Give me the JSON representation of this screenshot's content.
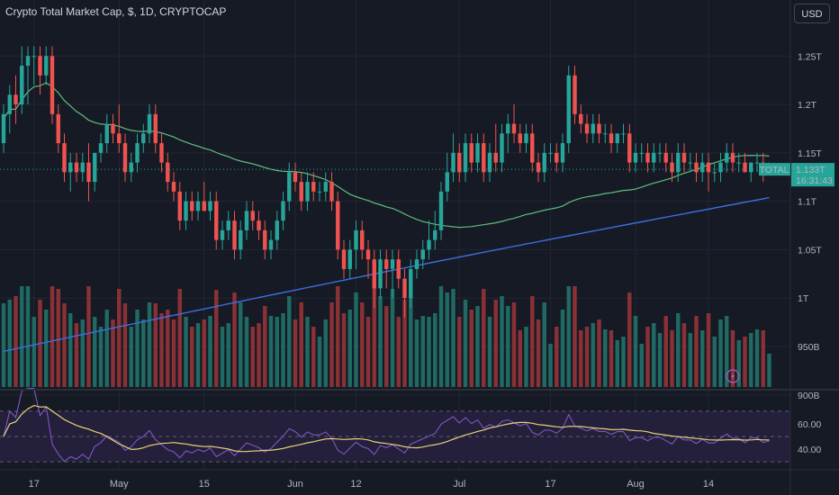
{
  "header": {
    "title": "Crypto Total Market Cap, $, 1D, CRYPTOCAP",
    "currency": "USD"
  },
  "badge": {
    "symbol": "TOTAL",
    "value": "1.133T",
    "countdown": "16:31:43"
  },
  "colors": {
    "up": "#26a69a",
    "down": "#ef5350",
    "vol_up": "#1f6b63",
    "vol_down": "#8a3136",
    "ma_fast": "#5fbf7f",
    "ma_slow": "#3d6fe0",
    "rsi_line": "#7e57c2",
    "rsi_ma": "#e6d27a",
    "rsi_band": "#241f3a"
  },
  "chart_data": [
    {
      "type": "candlestick",
      "title": "Crypto Total Market Cap, $, 1D, CRYPTOCAP",
      "ylim": [
        0.91,
        1.28
      ],
      "yticks": [
        {
          "v": 1.25,
          "label": "1.25T"
        },
        {
          "v": 1.2,
          "label": "1.2T"
        },
        {
          "v": 1.15,
          "label": "1.15T"
        },
        {
          "v": 1.1,
          "label": "1.1T"
        },
        {
          "v": 1.05,
          "label": "1.05T"
        },
        {
          "v": 1.0,
          "label": "1T"
        },
        {
          "v": 0.95,
          "label": "950B"
        },
        {
          "v": 0.9,
          "label": "900B"
        }
      ],
      "xticks": [
        {
          "i": 5,
          "label": "17"
        },
        {
          "i": 19,
          "label": "May"
        },
        {
          "i": 33,
          "label": "15"
        },
        {
          "i": 48,
          "label": "Jun"
        },
        {
          "i": 58,
          "label": "12"
        },
        {
          "i": 75,
          "label": "Jul"
        },
        {
          "i": 90,
          "label": "17"
        },
        {
          "i": 104,
          "label": "Aug"
        },
        {
          "i": 116,
          "label": "14"
        }
      ],
      "ohlc": [
        [
          1.16,
          1.2,
          1.15,
          1.19
        ],
        [
          1.19,
          1.22,
          1.17,
          1.21
        ],
        [
          1.21,
          1.23,
          1.18,
          1.2
        ],
        [
          1.2,
          1.26,
          1.19,
          1.24
        ],
        [
          1.24,
          1.26,
          1.2,
          1.25
        ],
        [
          1.25,
          1.26,
          1.22,
          1.25
        ],
        [
          1.25,
          1.26,
          1.21,
          1.23
        ],
        [
          1.23,
          1.26,
          1.22,
          1.25
        ],
        [
          1.25,
          1.26,
          1.18,
          1.19
        ],
        [
          1.19,
          1.2,
          1.15,
          1.16
        ],
        [
          1.16,
          1.17,
          1.12,
          1.13
        ],
        [
          1.13,
          1.15,
          1.11,
          1.14
        ],
        [
          1.14,
          1.15,
          1.12,
          1.13
        ],
        [
          1.13,
          1.15,
          1.12,
          1.14
        ],
        [
          1.14,
          1.16,
          1.1,
          1.12
        ],
        [
          1.12,
          1.15,
          1.11,
          1.15
        ],
        [
          1.15,
          1.17,
          1.14,
          1.16
        ],
        [
          1.16,
          1.19,
          1.15,
          1.18
        ],
        [
          1.18,
          1.19,
          1.16,
          1.17
        ],
        [
          1.17,
          1.2,
          1.15,
          1.16
        ],
        [
          1.16,
          1.17,
          1.12,
          1.13
        ],
        [
          1.13,
          1.15,
          1.12,
          1.14
        ],
        [
          1.14,
          1.17,
          1.13,
          1.16
        ],
        [
          1.16,
          1.18,
          1.15,
          1.17
        ],
        [
          1.17,
          1.2,
          1.16,
          1.19
        ],
        [
          1.19,
          1.2,
          1.15,
          1.16
        ],
        [
          1.16,
          1.17,
          1.13,
          1.14
        ],
        [
          1.14,
          1.15,
          1.11,
          1.12
        ],
        [
          1.12,
          1.13,
          1.1,
          1.11
        ],
        [
          1.11,
          1.12,
          1.07,
          1.08
        ],
        [
          1.08,
          1.11,
          1.07,
          1.1
        ],
        [
          1.1,
          1.11,
          1.08,
          1.09
        ],
        [
          1.09,
          1.11,
          1.08,
          1.1
        ],
        [
          1.1,
          1.12,
          1.09,
          1.09
        ],
        [
          1.09,
          1.11,
          1.08,
          1.1
        ],
        [
          1.1,
          1.11,
          1.05,
          1.06
        ],
        [
          1.06,
          1.08,
          1.05,
          1.07
        ],
        [
          1.07,
          1.09,
          1.06,
          1.08
        ],
        [
          1.08,
          1.09,
          1.04,
          1.05
        ],
        [
          1.05,
          1.08,
          1.04,
          1.07
        ],
        [
          1.07,
          1.1,
          1.06,
          1.09
        ],
        [
          1.09,
          1.1,
          1.07,
          1.08
        ],
        [
          1.08,
          1.09,
          1.06,
          1.07
        ],
        [
          1.07,
          1.08,
          1.04,
          1.05
        ],
        [
          1.05,
          1.07,
          1.04,
          1.06
        ],
        [
          1.06,
          1.09,
          1.05,
          1.08
        ],
        [
          1.08,
          1.11,
          1.07,
          1.1
        ],
        [
          1.1,
          1.14,
          1.09,
          1.13
        ],
        [
          1.13,
          1.14,
          1.11,
          1.12
        ],
        [
          1.12,
          1.13,
          1.09,
          1.1
        ],
        [
          1.1,
          1.13,
          1.09,
          1.12
        ],
        [
          1.12,
          1.13,
          1.1,
          1.11
        ],
        [
          1.11,
          1.12,
          1.1,
          1.11
        ],
        [
          1.11,
          1.13,
          1.1,
          1.12
        ],
        [
          1.12,
          1.13,
          1.09,
          1.1
        ],
        [
          1.1,
          1.11,
          1.04,
          1.05
        ],
        [
          1.05,
          1.06,
          1.02,
          1.03
        ],
        [
          1.03,
          1.06,
          1.02,
          1.05
        ],
        [
          1.05,
          1.08,
          1.03,
          1.07
        ],
        [
          1.07,
          1.08,
          1.04,
          1.05
        ],
        [
          1.05,
          1.06,
          1.02,
          1.04
        ],
        [
          1.04,
          1.05,
          0.99,
          1.01
        ],
        [
          1.01,
          1.05,
          1.0,
          1.04
        ],
        [
          1.04,
          1.05,
          1.01,
          1.03
        ],
        [
          1.03,
          1.05,
          1.0,
          1.04
        ],
        [
          1.04,
          1.05,
          1.01,
          1.02
        ],
        [
          1.02,
          1.03,
          0.98,
          1.0
        ],
        [
          1.0,
          1.04,
          0.99,
          1.03
        ],
        [
          1.03,
          1.05,
          1.02,
          1.04
        ],
        [
          1.04,
          1.06,
          1.03,
          1.05
        ],
        [
          1.05,
          1.08,
          1.04,
          1.06
        ],
        [
          1.06,
          1.09,
          1.05,
          1.07
        ],
        [
          1.07,
          1.12,
          1.06,
          1.11
        ],
        [
          1.11,
          1.15,
          1.1,
          1.13
        ],
        [
          1.13,
          1.17,
          1.12,
          1.15
        ],
        [
          1.15,
          1.16,
          1.12,
          1.13
        ],
        [
          1.13,
          1.17,
          1.12,
          1.16
        ],
        [
          1.16,
          1.17,
          1.13,
          1.14
        ],
        [
          1.14,
          1.17,
          1.13,
          1.16
        ],
        [
          1.16,
          1.17,
          1.12,
          1.13
        ],
        [
          1.13,
          1.16,
          1.12,
          1.15
        ],
        [
          1.15,
          1.18,
          1.13,
          1.14
        ],
        [
          1.14,
          1.18,
          1.13,
          1.17
        ],
        [
          1.17,
          1.19,
          1.15,
          1.18
        ],
        [
          1.18,
          1.2,
          1.16,
          1.17
        ],
        [
          1.17,
          1.18,
          1.15,
          1.16
        ],
        [
          1.16,
          1.18,
          1.15,
          1.17
        ],
        [
          1.17,
          1.18,
          1.13,
          1.14
        ],
        [
          1.14,
          1.15,
          1.12,
          1.13
        ],
        [
          1.13,
          1.16,
          1.12,
          1.15
        ],
        [
          1.15,
          1.16,
          1.14,
          1.15
        ],
        [
          1.15,
          1.16,
          1.13,
          1.14
        ],
        [
          1.14,
          1.17,
          1.13,
          1.16
        ],
        [
          1.16,
          1.24,
          1.15,
          1.23
        ],
        [
          1.23,
          1.24,
          1.18,
          1.19
        ],
        [
          1.19,
          1.2,
          1.17,
          1.18
        ],
        [
          1.18,
          1.19,
          1.16,
          1.17
        ],
        [
          1.17,
          1.19,
          1.16,
          1.18
        ],
        [
          1.18,
          1.19,
          1.16,
          1.17
        ],
        [
          1.17,
          1.18,
          1.16,
          1.17
        ],
        [
          1.17,
          1.18,
          1.15,
          1.16
        ],
        [
          1.16,
          1.17,
          1.15,
          1.17
        ],
        [
          1.17,
          1.18,
          1.16,
          1.17
        ],
        [
          1.17,
          1.18,
          1.13,
          1.14
        ],
        [
          1.14,
          1.16,
          1.13,
          1.15
        ],
        [
          1.15,
          1.16,
          1.14,
          1.15
        ],
        [
          1.15,
          1.16,
          1.13,
          1.14
        ],
        [
          1.14,
          1.16,
          1.13,
          1.15
        ],
        [
          1.15,
          1.16,
          1.14,
          1.15
        ],
        [
          1.15,
          1.16,
          1.13,
          1.14
        ],
        [
          1.14,
          1.15,
          1.12,
          1.13
        ],
        [
          1.13,
          1.16,
          1.12,
          1.15
        ],
        [
          1.15,
          1.16,
          1.13,
          1.14
        ],
        [
          1.14,
          1.15,
          1.13,
          1.14
        ],
        [
          1.14,
          1.15,
          1.12,
          1.13
        ],
        [
          1.13,
          1.15,
          1.12,
          1.14
        ],
        [
          1.14,
          1.15,
          1.11,
          1.13
        ],
        [
          1.13,
          1.14,
          1.12,
          1.13
        ],
        [
          1.13,
          1.15,
          1.12,
          1.14
        ],
        [
          1.14,
          1.16,
          1.13,
          1.15
        ],
        [
          1.15,
          1.16,
          1.13,
          1.14
        ],
        [
          1.14,
          1.15,
          1.13,
          1.14
        ],
        [
          1.14,
          1.15,
          1.13,
          1.13
        ],
        [
          1.13,
          1.14,
          1.12,
          1.14
        ],
        [
          1.14,
          1.15,
          1.13,
          1.14
        ],
        [
          1.14,
          1.15,
          1.12,
          1.13
        ],
        [
          1.13,
          1.14,
          1.13,
          1.133
        ]
      ],
      "current_value": 1.133
    },
    {
      "type": "bar",
      "ylim": [
        0.5,
        10.6
      ]
    },
    {
      "type": "line",
      "ylim": [
        28,
        82
      ],
      "yticks": [
        {
          "v": 60,
          "label": "60.00"
        },
        {
          "v": 40,
          "label": "40.00"
        }
      ],
      "band": [
        30,
        70
      ]
    }
  ]
}
